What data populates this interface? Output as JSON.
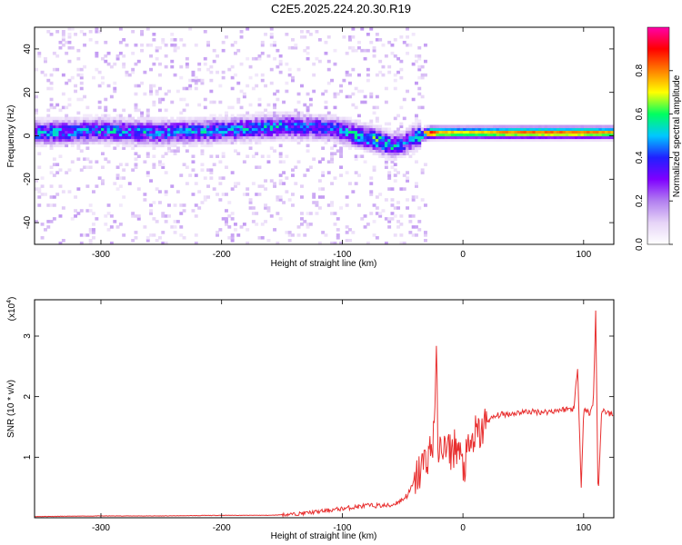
{
  "title": "C2E5.2025.224.20.30.R19",
  "chart_data": [
    {
      "type": "heatmap",
      "xlabel": "Height of straight line (km)",
      "ylabel": "Frequency (Hz)",
      "colorbar_label": "Normalized spectral amplitude",
      "xlim": [
        -355,
        125
      ],
      "ylim": [
        -50,
        50
      ],
      "xticks": [
        -300,
        -200,
        -100,
        0,
        100
      ],
      "yticks": [
        -40,
        -20,
        0,
        20,
        40
      ],
      "colorbar_range": [
        0,
        1
      ],
      "colorbar_ticks": [
        "0.0",
        "0.2",
        "0.4",
        "0.6",
        "0.8"
      ],
      "colorbar_tick_values": [
        0,
        0.2,
        0.4,
        0.6,
        0.8
      ],
      "colormap": [
        "#ffffff",
        "#e6d4f7",
        "#b27ff0",
        "#7f00ff",
        "#2020ff",
        "#00c8ff",
        "#00ff60",
        "#ffff00",
        "#ff8000",
        "#ff0000",
        "#ff00aa"
      ],
      "ridge": {
        "description_points_x": [
          -355,
          -300,
          -250,
          -200,
          -150,
          -110,
          -90,
          -70,
          -60,
          -50,
          -40,
          -35,
          -28,
          -20,
          0,
          50,
          100,
          125
        ],
        "frequency": [
          1,
          2,
          1,
          2,
          4,
          3,
          0,
          -3,
          -5,
          -4,
          -1,
          0,
          1,
          1,
          1,
          1,
          1,
          1
        ],
        "amplitude": [
          0.45,
          0.45,
          0.45,
          0.45,
          0.45,
          0.4,
          0.5,
          0.55,
          0.5,
          0.4,
          0.5,
          0.6,
          0.95,
          0.8,
          0.75,
          0.85,
          0.85,
          0.8
        ]
      }
    },
    {
      "type": "line",
      "xlabel": "Height of straight line (km)",
      "ylabel": "SNR (10 * v/v)",
      "multiplier": "(x10",
      "multiplier_exp": "4",
      "multiplier_close": ")",
      "xlim": [
        -355,
        125
      ],
      "ylim": [
        0,
        3.6
      ],
      "xticks": [
        -300,
        -200,
        -100,
        0,
        100
      ],
      "yticks": [
        1,
        2,
        3
      ],
      "color": "#e83030",
      "series": [
        {
          "x": [
            -355,
            -300,
            -250,
            -200,
            -160,
            -140,
            -120,
            -100,
            -80,
            -60,
            -50,
            -45,
            -40,
            -35,
            -30,
            -25,
            -22,
            -20,
            -18,
            -15,
            -10,
            -5,
            0,
            5,
            10,
            15,
            20,
            25,
            30,
            40,
            50,
            60,
            70,
            80,
            88,
            92,
            95,
            98,
            100,
            102,
            105,
            108,
            110,
            112,
            115,
            120,
            125
          ],
          "y": [
            0.02,
            0.03,
            0.03,
            0.04,
            0.04,
            0.06,
            0.1,
            0.15,
            0.2,
            0.2,
            0.3,
            0.4,
            0.6,
            0.8,
            1.0,
            1.2,
            2.5,
            0.8,
            1.3,
            1.1,
            1.1,
            1.2,
            0.8,
            1.1,
            1.35,
            1.4,
            1.6,
            1.65,
            1.7,
            1.72,
            1.75,
            1.75,
            1.75,
            1.78,
            1.8,
            1.8,
            2.5,
            0.5,
            1.75,
            1.8,
            1.7,
            1.9,
            3.4,
            0.3,
            1.8,
            1.72,
            1.7
          ]
        }
      ]
    }
  ]
}
